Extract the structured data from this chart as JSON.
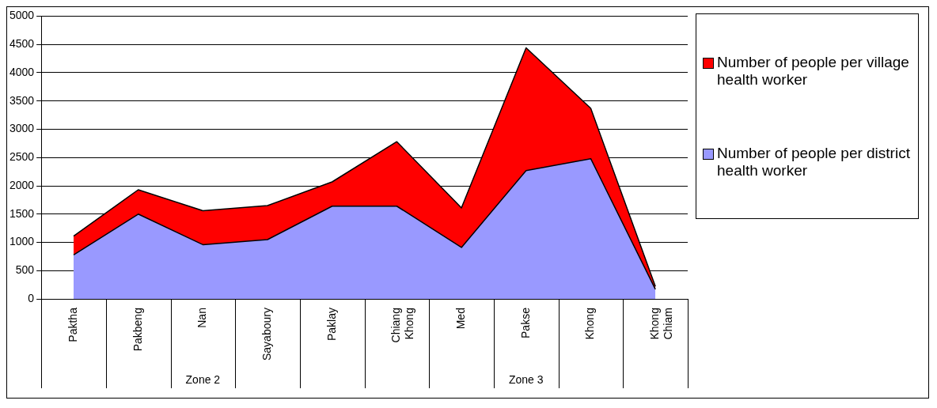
{
  "chart_data": {
    "type": "area",
    "stacked": true,
    "categories": [
      "Paktha",
      "Pakbeng",
      "Nan",
      "Sayaboury",
      "Paklay",
      "Chiang Khong",
      "Med",
      "Pakse",
      "Khong",
      "Khong Chiam"
    ],
    "series": [
      {
        "name": "Number of people per district health worker",
        "color": "#9999ff",
        "values": [
          780,
          1500,
          960,
          1050,
          1640,
          1640,
          910,
          2270,
          2480,
          170
        ]
      },
      {
        "name": "Number of people per village health worker",
        "color": "#ff0000",
        "values": [
          330,
          430,
          600,
          600,
          430,
          1140,
          700,
          2170,
          890,
          50
        ]
      }
    ],
    "ylim": [
      0,
      5000
    ],
    "yticks": [
      0,
      500,
      1000,
      1500,
      2000,
      2500,
      3000,
      3500,
      4000,
      4500,
      5000
    ],
    "grid": "y",
    "legend": "right",
    "marker": "none",
    "line_style": "solid",
    "annotations": [
      "Zone 2",
      "Zone 3"
    ]
  }
}
